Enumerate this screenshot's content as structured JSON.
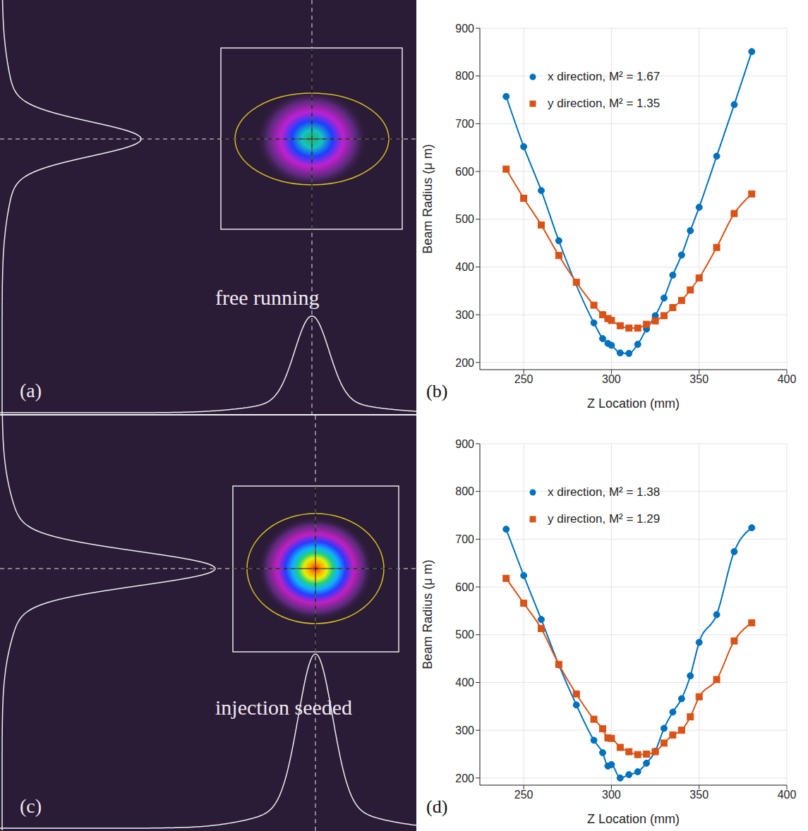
{
  "images": [
    {
      "label": "(a)",
      "text": "free running"
    },
    {
      "label": "(c)",
      "text": "injection seeded"
    }
  ],
  "chart_data": [
    {
      "type": "line",
      "annotation": "(b)",
      "x_label": "Z Location (mm)",
      "y_label": "Beam Radius (μ m)",
      "xlim": [
        225,
        400
      ],
      "xticks": [
        250,
        300,
        350,
        400
      ],
      "ylim": [
        185,
        900
      ],
      "yticks": [
        200,
        300,
        400,
        500,
        600,
        700,
        800,
        900
      ],
      "grid": true,
      "legend": "upper left",
      "series": [
        {
          "name": "x direction, M² = 1.67",
          "color": "#0072bd",
          "marker": "circle",
          "line_style": "solid",
          "x": [
            240,
            250,
            260,
            270,
            290,
            295,
            298,
            300,
            305,
            310,
            315,
            320,
            325,
            330,
            335,
            340,
            345,
            350,
            360,
            370,
            380
          ],
          "values": [
            757,
            652,
            560,
            455,
            283,
            250,
            240,
            236,
            220,
            219,
            238,
            270,
            298,
            335,
            383,
            425,
            476,
            525,
            632,
            740,
            851
          ]
        },
        {
          "name": "y direction, M² = 1.35",
          "color": "#d95319",
          "marker": "square",
          "line_style": "solid",
          "x": [
            240,
            250,
            260,
            270,
            280,
            290,
            295,
            298,
            300,
            305,
            310,
            315,
            320,
            325,
            330,
            335,
            340,
            345,
            350,
            360,
            370,
            380
          ],
          "values": [
            605,
            544,
            488,
            424,
            368,
            320,
            300,
            292,
            288,
            277,
            272,
            272,
            280,
            287,
            298,
            315,
            330,
            352,
            377,
            441,
            512,
            553
          ]
        }
      ]
    },
    {
      "type": "line",
      "annotation": "(d)",
      "x_label": "Z Location (mm)",
      "y_label": "Beam Radius (μ m)",
      "xlim": [
        225,
        400
      ],
      "xticks": [
        250,
        300,
        350,
        400
      ],
      "ylim": [
        185,
        900
      ],
      "yticks": [
        200,
        300,
        400,
        500,
        600,
        700,
        800,
        900
      ],
      "grid": true,
      "legend": "upper left",
      "series": [
        {
          "name": "x direction, M² = 1.38",
          "color": "#0072bd",
          "marker": "circle",
          "line_style": "solid",
          "x": [
            240,
            250,
            260,
            270,
            280,
            290,
            295,
            298,
            300,
            305,
            310,
            315,
            320,
            325,
            330,
            335,
            340,
            345,
            350,
            360,
            370,
            380
          ],
          "values": [
            721,
            624,
            532,
            437,
            353,
            279,
            253,
            225,
            228,
            200,
            207,
            213,
            231,
            256,
            304,
            338,
            366,
            414,
            484,
            542,
            674,
            724
          ]
        },
        {
          "name": "y direction, M² = 1.29",
          "color": "#d95319",
          "marker": "square",
          "line_style": "solid",
          "x": [
            240,
            250,
            260,
            270,
            280,
            290,
            295,
            298,
            300,
            305,
            310,
            315,
            320,
            325,
            330,
            335,
            340,
            345,
            350,
            360,
            370,
            380
          ],
          "values": [
            618,
            566,
            513,
            438,
            376,
            323,
            303,
            284,
            283,
            264,
            255,
            249,
            250,
            255,
            273,
            290,
            300,
            328,
            370,
            406,
            487,
            525
          ]
        }
      ]
    }
  ]
}
